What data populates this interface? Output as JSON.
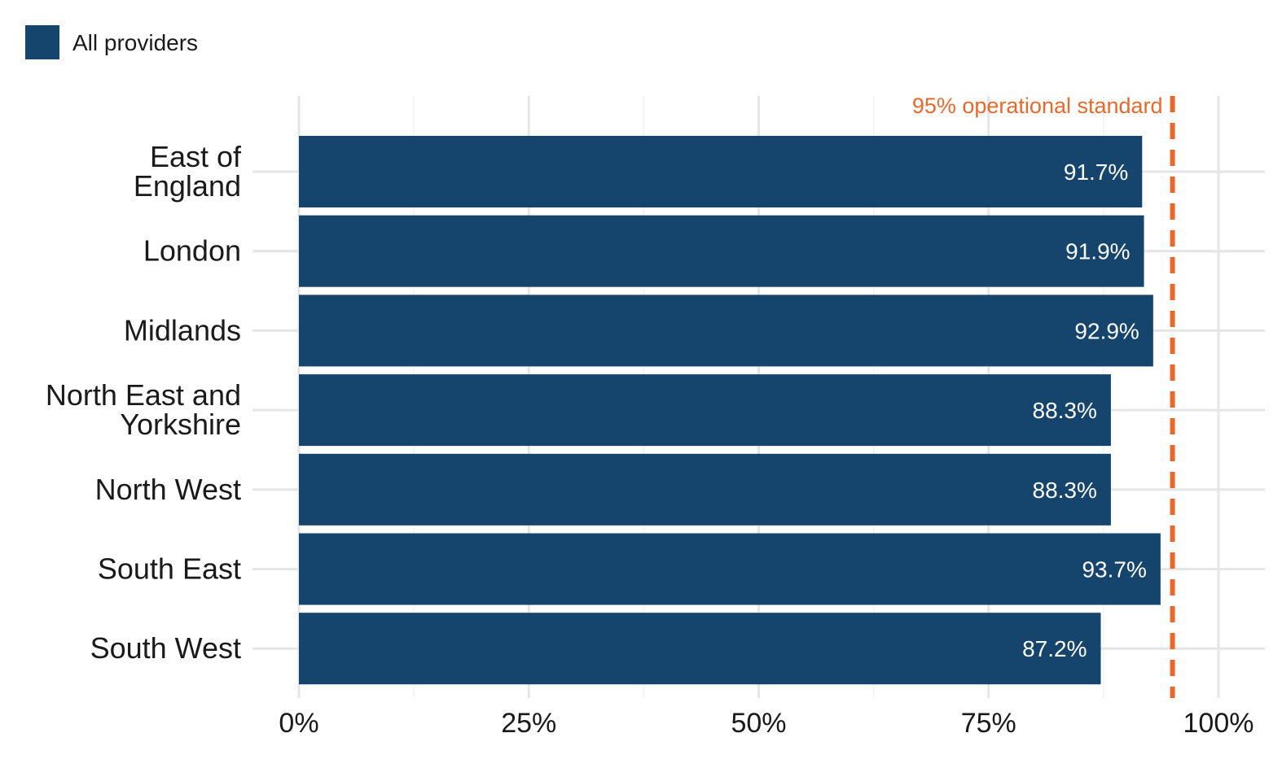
{
  "chart_data": {
    "type": "bar",
    "orientation": "horizontal",
    "categories": [
      "East of England",
      "London",
      "Midlands",
      "North East and Yorkshire",
      "North West",
      "South East",
      "South West"
    ],
    "category_lines": [
      [
        "East of",
        "England"
      ],
      [
        "London"
      ],
      [
        "Midlands"
      ],
      [
        "North East and",
        "Yorkshire"
      ],
      [
        "North West"
      ],
      [
        "South East"
      ],
      [
        "South West"
      ]
    ],
    "series": [
      {
        "name": "All providers",
        "color": "#15446C",
        "values": [
          91.7,
          91.9,
          92.9,
          88.3,
          88.3,
          93.7,
          87.2
        ],
        "labels": [
          "91.7%",
          "91.9%",
          "92.9%",
          "88.3%",
          "88.3%",
          "93.7%",
          "87.2%"
        ]
      }
    ],
    "xlim": [
      0,
      100
    ],
    "x_ticks": [
      0,
      25,
      50,
      75,
      100
    ],
    "x_tick_labels": [
      "0%",
      "25%",
      "50%",
      "75%",
      "100%"
    ],
    "grid": true,
    "legend_position": "top-left",
    "reference_line": {
      "value": 95,
      "label": "95% operational standard",
      "color": "#E8692C",
      "style": "dashed"
    }
  }
}
